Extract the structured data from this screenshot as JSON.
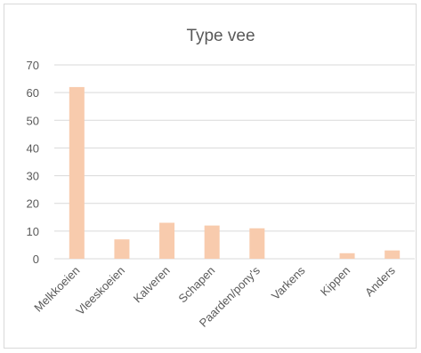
{
  "chart_data": {
    "type": "bar",
    "title": "Type vee",
    "categories": [
      "Melkkoeien",
      "Vleeskoeien",
      "Kalveren",
      "Schapen",
      "Paarden/pony's",
      "Varkens",
      "Kippen",
      "Anders"
    ],
    "values": [
      62,
      7,
      13,
      12,
      11,
      0,
      2,
      3
    ],
    "ylim": [
      0,
      70
    ],
    "yticks": [
      "0",
      "10",
      "20",
      "30",
      "40",
      "50",
      "60",
      "70"
    ],
    "grid": true,
    "legend": "none",
    "colors": {
      "bar": "#f8cbad",
      "grid": "#d9d9d9",
      "text": "#595959"
    }
  }
}
